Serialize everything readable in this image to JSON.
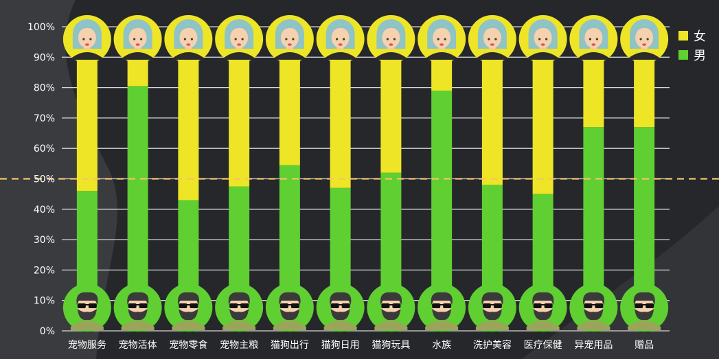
{
  "chart_data": {
    "type": "bar",
    "stacked": true,
    "percent": true,
    "title": "",
    "xlabel": "",
    "ylabel": "",
    "ylim": [
      0,
      100
    ],
    "y_ticks": [
      "0%",
      "10%",
      "20%",
      "30%",
      "40%",
      "50%",
      "60%",
      "70%",
      "80%",
      "90%",
      "100%"
    ],
    "categories": [
      "宠物服务",
      "宠物活体",
      "宠物零食",
      "宠物主粮",
      "猫狗出行",
      "猫狗日用",
      "猫狗玩具",
      "水族",
      "洗护美容",
      "医疗保健",
      "异宠用品",
      "赠品"
    ],
    "series": [
      {
        "name": "男",
        "color": "#5fcf32",
        "values": [
          46,
          80.5,
          43,
          47.5,
          54.5,
          47,
          52,
          79,
          48,
          45,
          67,
          67
        ]
      },
      {
        "name": "女",
        "color": "#eee526",
        "values": [
          54,
          19.5,
          57,
          52.5,
          45.5,
          53,
          48,
          21,
          52,
          55,
          33,
          33
        ]
      }
    ],
    "reference_line": {
      "value": 50,
      "style": "dashed",
      "color": "#f5c469"
    },
    "grid": true,
    "legend_position": "top-right",
    "icons": {
      "top": "woman-avatar-icon",
      "bottom": "bearded-man-avatar-icon"
    }
  }
}
